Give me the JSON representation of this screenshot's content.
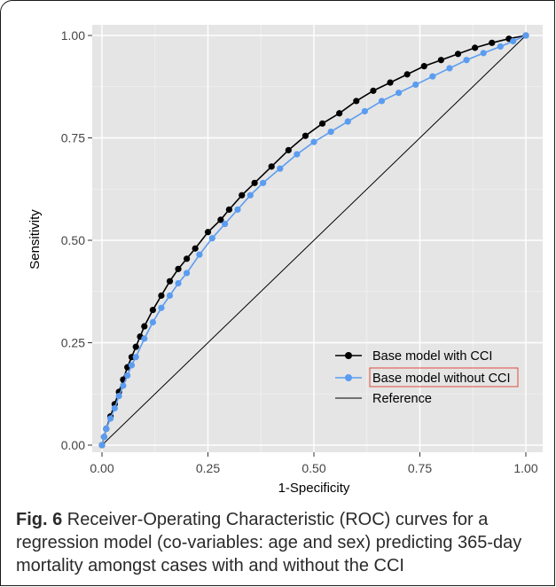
{
  "figure": {
    "caption_label": "Fig. 6",
    "caption_text": " Receiver-Operating Characteristic (ROC) curves for a regression model (co-variables: age and sex) predicting 365-day mortality amongst cases with and without the CCI"
  },
  "chart_data": {
    "type": "line",
    "title": "",
    "xlabel": "1-Specificity",
    "ylabel": "Sensitivity",
    "xlim": [
      0,
      1
    ],
    "ylim": [
      0,
      1
    ],
    "xticks": [
      "0.00",
      "0.25",
      "0.50",
      "0.75",
      "1.00"
    ],
    "yticks": [
      "0.00",
      "0.25",
      "0.50",
      "0.75",
      "1.00"
    ],
    "grid": true,
    "legend_position": "bottom-right",
    "series": [
      {
        "name": "Base model with CCI",
        "color": "#000000",
        "marker": "circle",
        "x": [
          0,
          0.005,
          0.01,
          0.02,
          0.03,
          0.04,
          0.05,
          0.06,
          0.07,
          0.08,
          0.09,
          0.1,
          0.12,
          0.14,
          0.16,
          0.18,
          0.2,
          0.22,
          0.25,
          0.28,
          0.3,
          0.33,
          0.36,
          0.4,
          0.44,
          0.48,
          0.52,
          0.56,
          0.6,
          0.64,
          0.68,
          0.72,
          0.76,
          0.8,
          0.84,
          0.88,
          0.92,
          0.96,
          1.0
        ],
        "y": [
          0,
          0.02,
          0.04,
          0.07,
          0.1,
          0.13,
          0.16,
          0.19,
          0.215,
          0.24,
          0.265,
          0.29,
          0.33,
          0.365,
          0.4,
          0.43,
          0.455,
          0.48,
          0.52,
          0.55,
          0.575,
          0.61,
          0.64,
          0.68,
          0.72,
          0.755,
          0.785,
          0.81,
          0.84,
          0.865,
          0.885,
          0.905,
          0.925,
          0.94,
          0.955,
          0.97,
          0.982,
          0.992,
          1.0
        ]
      },
      {
        "name": "Base model without CCI",
        "color": "#5b9cf0",
        "marker": "circle",
        "x": [
          0,
          0.005,
          0.01,
          0.02,
          0.03,
          0.04,
          0.05,
          0.06,
          0.07,
          0.08,
          0.1,
          0.12,
          0.14,
          0.16,
          0.18,
          0.2,
          0.23,
          0.26,
          0.29,
          0.32,
          0.35,
          0.38,
          0.42,
          0.46,
          0.5,
          0.54,
          0.58,
          0.62,
          0.66,
          0.7,
          0.74,
          0.78,
          0.82,
          0.86,
          0.9,
          0.94,
          0.97,
          1.0
        ],
        "y": [
          0,
          0.02,
          0.04,
          0.065,
          0.09,
          0.12,
          0.145,
          0.17,
          0.195,
          0.215,
          0.26,
          0.3,
          0.335,
          0.365,
          0.395,
          0.42,
          0.465,
          0.505,
          0.54,
          0.575,
          0.61,
          0.64,
          0.675,
          0.71,
          0.74,
          0.765,
          0.79,
          0.815,
          0.84,
          0.86,
          0.88,
          0.9,
          0.92,
          0.94,
          0.957,
          0.973,
          0.986,
          1.0
        ]
      },
      {
        "name": "Reference",
        "color": "#000000",
        "marker": "none",
        "x": [
          0,
          1
        ],
        "y": [
          0,
          1
        ]
      }
    ]
  }
}
